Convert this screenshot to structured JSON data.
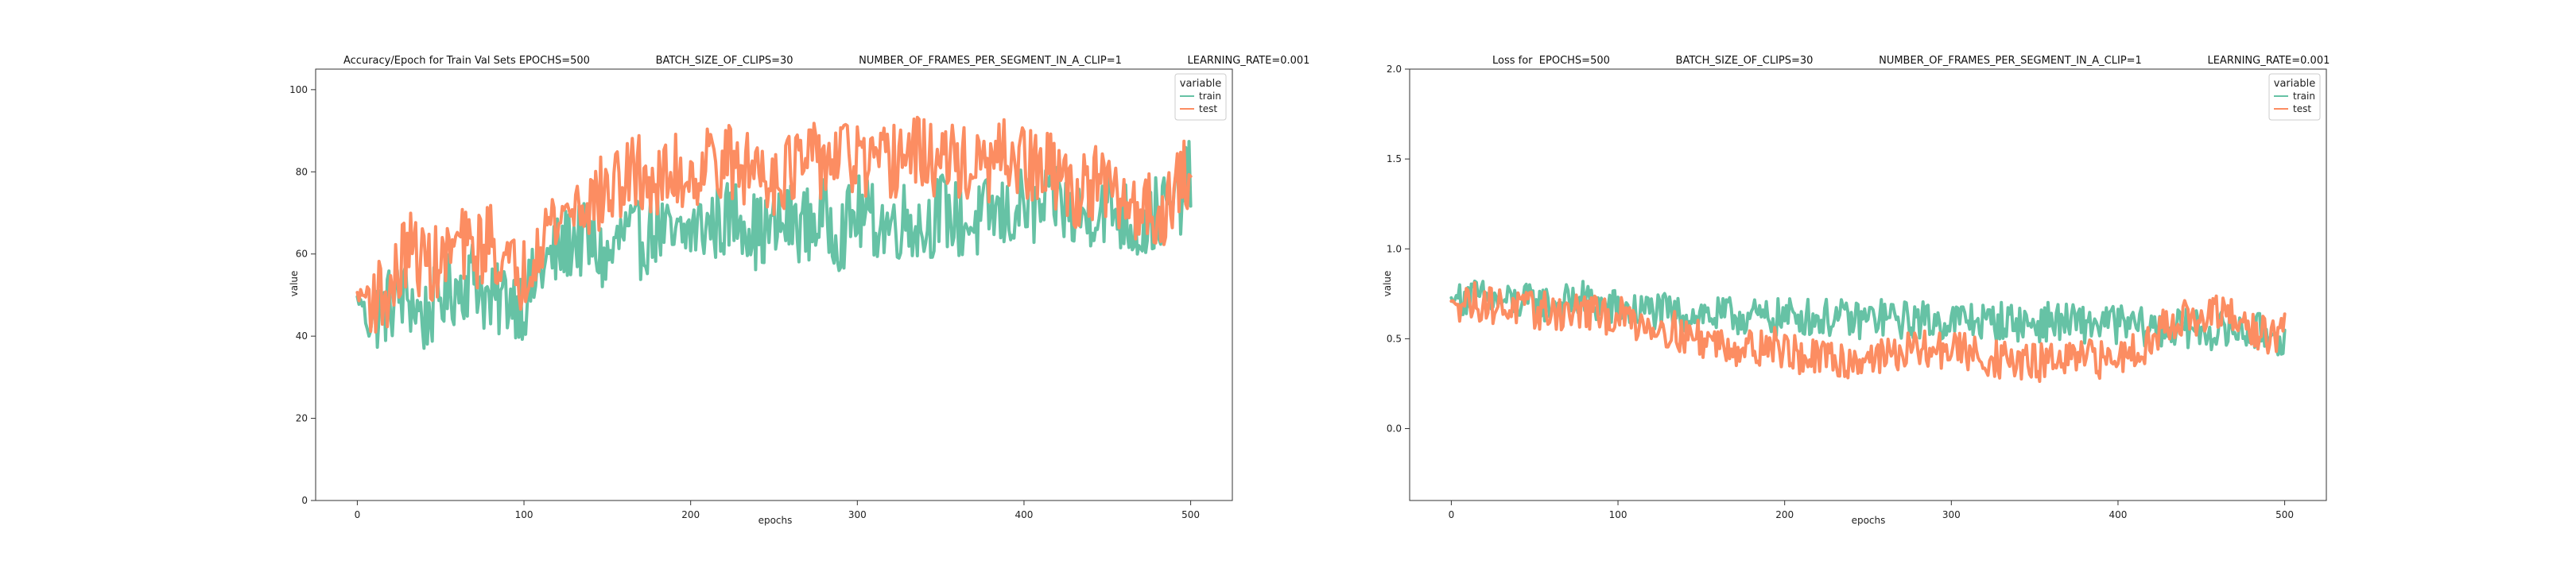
{
  "colors": {
    "train": "#66c2a5",
    "test": "#fc8d62"
  },
  "chart_data": [
    {
      "type": "line",
      "title": "Accuracy/Epoch for Train Val Sets EPOCHS=500                    BATCH_SIZE_OF_CLIPS=30                    NUMBER_OF_FRAMES_PER_SEGMENT_IN_A_CLIP=1                    LEARNING_RATE=0.001",
      "xlabel": "epochs",
      "ylabel": "value",
      "xlim": [
        -25,
        525
      ],
      "ylim": [
        0,
        105
      ],
      "xticks": [
        "0",
        "100",
        "200",
        "300",
        "400",
        "500"
      ],
      "xtick_values": [
        0,
        100,
        200,
        300,
        400,
        500
      ],
      "yticks": [
        "0",
        "20",
        "40",
        "60",
        "80",
        "100"
      ],
      "ytick_values": [
        0,
        20,
        40,
        60,
        80,
        100
      ],
      "legend": {
        "title": "variable",
        "placement": "top-right",
        "entries": [
          "train",
          "test"
        ]
      },
      "grid": false,
      "series": [
        {
          "name": "train",
          "x": [
            0,
            10,
            20,
            30,
            40,
            50,
            60,
            70,
            80,
            90,
            100,
            110,
            120,
            130,
            140,
            150,
            160,
            170,
            180,
            190,
            200,
            210,
            220,
            230,
            240,
            250,
            260,
            270,
            280,
            290,
            300,
            310,
            320,
            330,
            340,
            350,
            360,
            370,
            380,
            390,
            400,
            410,
            420,
            430,
            440,
            450,
            460,
            470,
            480,
            490,
            500
          ],
          "y": [
            49,
            45,
            48,
            50,
            44,
            50,
            52,
            55,
            47,
            50,
            48,
            56,
            60,
            64,
            62,
            58,
            65,
            63,
            67,
            62,
            66,
            67,
            68,
            70,
            65,
            66,
            68,
            67,
            69,
            65,
            70,
            68,
            67,
            69,
            66,
            71,
            68,
            67,
            70,
            69,
            72,
            70,
            74,
            68,
            71,
            72,
            69,
            66,
            70,
            71,
            79
          ]
        },
        {
          "name": "test",
          "x": [
            0,
            10,
            20,
            30,
            40,
            50,
            60,
            70,
            80,
            90,
            100,
            110,
            120,
            130,
            140,
            150,
            160,
            170,
            180,
            190,
            200,
            210,
            220,
            230,
            240,
            250,
            260,
            270,
            280,
            290,
            300,
            310,
            320,
            330,
            340,
            350,
            360,
            370,
            380,
            390,
            400,
            410,
            420,
            430,
            440,
            450,
            460,
            470,
            480,
            490,
            500
          ],
          "y": [
            50,
            50,
            50,
            62,
            58,
            57,
            63,
            60,
            64,
            56,
            55,
            66,
            68,
            72,
            73,
            75,
            78,
            80,
            76,
            80,
            79,
            83,
            83,
            80,
            82,
            79,
            81,
            82,
            83,
            84,
            83,
            80,
            82,
            85,
            84,
            82,
            83,
            80,
            81,
            84,
            82,
            80,
            80,
            74,
            78,
            75,
            72,
            72,
            70,
            74,
            81
          ]
        }
      ]
    },
    {
      "type": "line",
      "title": "Loss for  EPOCHS=500                    BATCH_SIZE_OF_CLIPS=30                    NUMBER_OF_FRAMES_PER_SEGMENT_IN_A_CLIP=1                    LEARNING_RATE=0.001",
      "xlabel": "epochs",
      "ylabel": "value",
      "xlim": [
        -25,
        525
      ],
      "ylim": [
        -0.4,
        2.0
      ],
      "xticks": [
        "0",
        "100",
        "200",
        "300",
        "400",
        "500"
      ],
      "xtick_values": [
        0,
        100,
        200,
        300,
        400,
        500
      ],
      "yticks": [
        "0.0",
        "0.5",
        "1.0",
        "1.5",
        "2.0"
      ],
      "ytick_values": [
        0.0,
        0.5,
        1.0,
        1.5,
        2.0
      ],
      "legend": {
        "title": "variable",
        "placement": "top-right",
        "entries": [
          "train",
          "test"
        ]
      },
      "grid": false,
      "series": [
        {
          "name": "train",
          "x": [
            0,
            10,
            20,
            30,
            40,
            50,
            60,
            70,
            80,
            90,
            100,
            110,
            120,
            130,
            140,
            150,
            160,
            170,
            180,
            190,
            200,
            210,
            220,
            230,
            240,
            250,
            260,
            270,
            280,
            290,
            300,
            310,
            320,
            330,
            340,
            350,
            360,
            370,
            380,
            390,
            400,
            410,
            420,
            430,
            440,
            450,
            460,
            470,
            480,
            490,
            500
          ],
          "y": [
            0.72,
            0.74,
            0.72,
            0.71,
            0.7,
            0.7,
            0.69,
            0.7,
            0.72,
            0.68,
            0.67,
            0.65,
            0.66,
            0.64,
            0.63,
            0.64,
            0.62,
            0.63,
            0.62,
            0.61,
            0.62,
            0.63,
            0.61,
            0.62,
            0.6,
            0.61,
            0.62,
            0.6,
            0.61,
            0.59,
            0.6,
            0.61,
            0.59,
            0.6,
            0.59,
            0.58,
            0.6,
            0.59,
            0.58,
            0.59,
            0.58,
            0.57,
            0.56,
            0.55,
            0.56,
            0.55,
            0.54,
            0.55,
            0.54,
            0.53,
            0.5
          ]
        },
        {
          "name": "test",
          "x": [
            0,
            10,
            20,
            30,
            40,
            50,
            60,
            70,
            80,
            90,
            100,
            110,
            120,
            130,
            140,
            150,
            160,
            170,
            180,
            190,
            200,
            210,
            220,
            230,
            240,
            250,
            260,
            270,
            280,
            290,
            300,
            310,
            320,
            330,
            340,
            350,
            360,
            370,
            380,
            390,
            400,
            410,
            420,
            430,
            440,
            450,
            460,
            470,
            480,
            490,
            500
          ],
          "y": [
            0.7,
            0.71,
            0.7,
            0.68,
            0.67,
            0.65,
            0.66,
            0.64,
            0.66,
            0.62,
            0.63,
            0.6,
            0.58,
            0.56,
            0.52,
            0.5,
            0.48,
            0.46,
            0.45,
            0.47,
            0.44,
            0.4,
            0.38,
            0.39,
            0.37,
            0.41,
            0.4,
            0.42,
            0.44,
            0.43,
            0.45,
            0.42,
            0.4,
            0.38,
            0.37,
            0.36,
            0.38,
            0.37,
            0.39,
            0.38,
            0.4,
            0.45,
            0.48,
            0.6,
            0.62,
            0.58,
            0.65,
            0.6,
            0.55,
            0.52,
            0.53
          ]
        }
      ]
    }
  ]
}
